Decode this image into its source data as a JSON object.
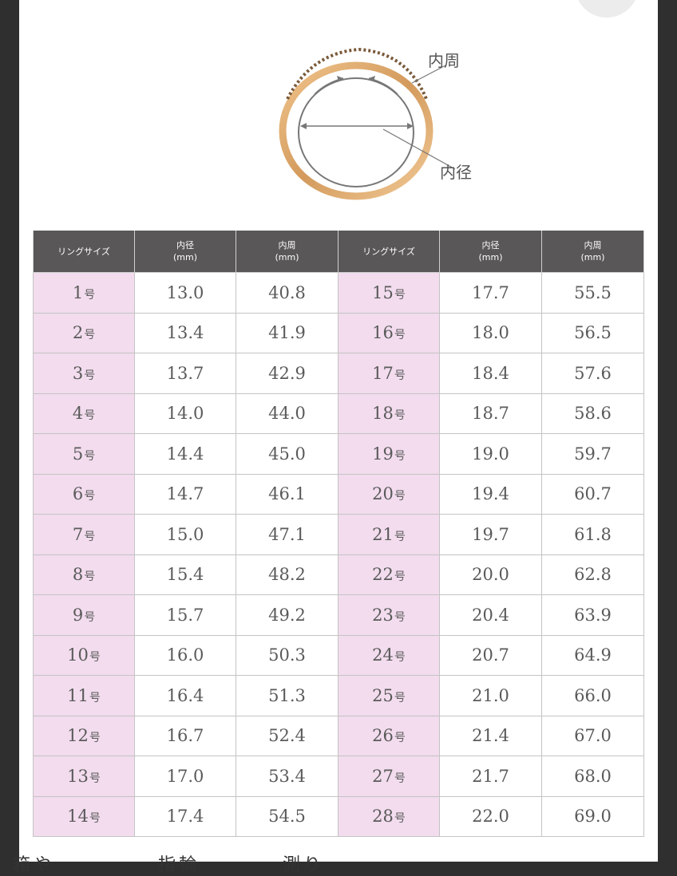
{
  "diagram": {
    "label_inner_circumference": "内周",
    "label_inner_diameter": "内径"
  },
  "table": {
    "header": {
      "size": "リングサイズ",
      "diameter": "内径",
      "diameter_unit": "(mm)",
      "circumference": "内周",
      "circumference_unit": "(mm)"
    },
    "size_suffix": "号",
    "rows_left": [
      {
        "size": "1",
        "diameter": "13.0",
        "circumference": "40.8"
      },
      {
        "size": "2",
        "diameter": "13.4",
        "circumference": "41.9"
      },
      {
        "size": "3",
        "diameter": "13.7",
        "circumference": "42.9"
      },
      {
        "size": "4",
        "diameter": "14.0",
        "circumference": "44.0"
      },
      {
        "size": "5",
        "diameter": "14.4",
        "circumference": "45.0"
      },
      {
        "size": "6",
        "diameter": "14.7",
        "circumference": "46.1"
      },
      {
        "size": "7",
        "diameter": "15.0",
        "circumference": "47.1"
      },
      {
        "size": "8",
        "diameter": "15.4",
        "circumference": "48.2"
      },
      {
        "size": "9",
        "diameter": "15.7",
        "circumference": "49.2"
      },
      {
        "size": "10",
        "diameter": "16.0",
        "circumference": "50.3"
      },
      {
        "size": "11",
        "diameter": "16.4",
        "circumference": "51.3"
      },
      {
        "size": "12",
        "diameter": "16.7",
        "circumference": "52.4"
      },
      {
        "size": "13",
        "diameter": "17.0",
        "circumference": "53.4"
      },
      {
        "size": "14",
        "diameter": "17.4",
        "circumference": "54.5"
      }
    ],
    "rows_right": [
      {
        "size": "15",
        "diameter": "17.7",
        "circumference": "55.5"
      },
      {
        "size": "16",
        "diameter": "18.0",
        "circumference": "56.5"
      },
      {
        "size": "17",
        "diameter": "18.4",
        "circumference": "57.6"
      },
      {
        "size": "18",
        "diameter": "18.7",
        "circumference": "58.6"
      },
      {
        "size": "19",
        "diameter": "19.0",
        "circumference": "59.7"
      },
      {
        "size": "20",
        "diameter": "19.4",
        "circumference": "60.7"
      },
      {
        "size": "21",
        "diameter": "19.7",
        "circumference": "61.8"
      },
      {
        "size": "22",
        "diameter": "20.0",
        "circumference": "62.8"
      },
      {
        "size": "23",
        "diameter": "20.4",
        "circumference": "63.9"
      },
      {
        "size": "24",
        "diameter": "20.7",
        "circumference": "64.9"
      },
      {
        "size": "25",
        "diameter": "21.0",
        "circumference": "66.0"
      },
      {
        "size": "26",
        "diameter": "21.4",
        "circumference": "67.0"
      },
      {
        "size": "27",
        "diameter": "21.7",
        "circumference": "68.0"
      },
      {
        "size": "28",
        "diameter": "22.0",
        "circumference": "69.0"
      }
    ]
  },
  "colors": {
    "header_bg": "#595757",
    "size_cell_bg": "#f2dcee",
    "ring_gold": "#d9a066"
  },
  "footer_text_partial": "箱や　　　　　指輪　　　　測り"
}
